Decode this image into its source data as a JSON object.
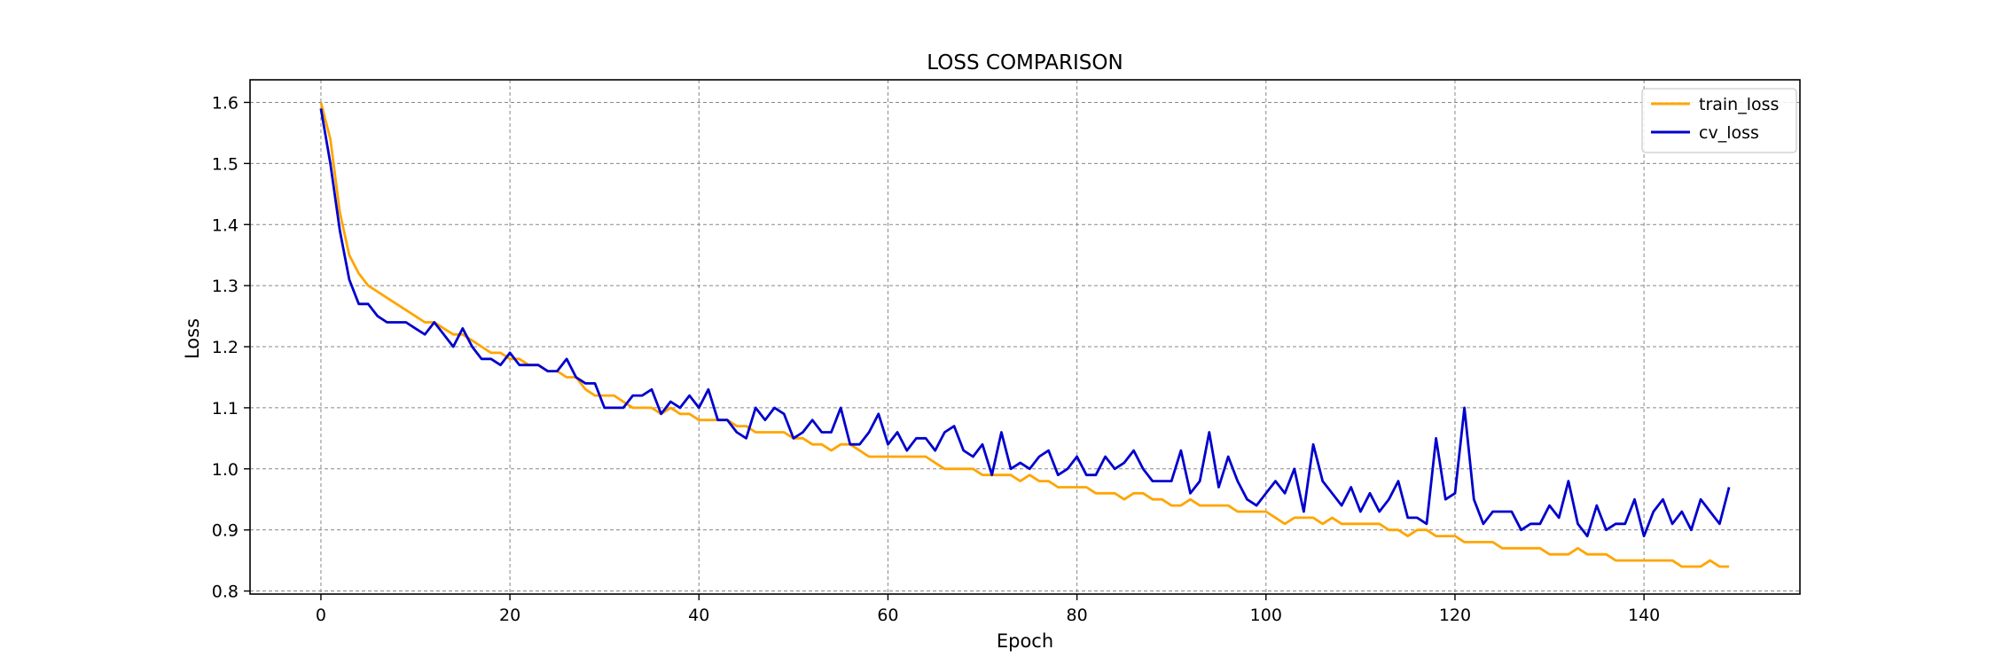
{
  "chart_data": {
    "type": "line",
    "title": "LOSS COMPARISON",
    "xlabel": "Epoch",
    "ylabel": "Loss",
    "xlim": [
      -7.5,
      156.5
    ],
    "ylim": [
      0.795,
      1.637
    ],
    "xticks": [
      0,
      20,
      40,
      60,
      80,
      100,
      120,
      140
    ],
    "yticks": [
      0.8,
      0.9,
      1.0,
      1.1,
      1.2,
      1.3,
      1.4,
      1.5,
      1.6
    ],
    "xtick_labels": [
      "0",
      "20",
      "40",
      "60",
      "80",
      "100",
      "120",
      "140"
    ],
    "ytick_labels": [
      "0.8",
      "0.9",
      "1.0",
      "1.1",
      "1.2",
      "1.3",
      "1.4",
      "1.5",
      "1.6"
    ],
    "grid": true,
    "legend_position": "top-right",
    "series": [
      {
        "name": "train_loss",
        "color": "#FFA500",
        "x": [
          0,
          1,
          2,
          3,
          4,
          5,
          6,
          7,
          8,
          9,
          10,
          11,
          12,
          13,
          14,
          15,
          16,
          17,
          18,
          19,
          20,
          21,
          22,
          23,
          24,
          25,
          26,
          27,
          28,
          29,
          30,
          31,
          32,
          33,
          34,
          35,
          36,
          37,
          38,
          39,
          40,
          41,
          42,
          43,
          44,
          45,
          46,
          47,
          48,
          49,
          50,
          51,
          52,
          53,
          54,
          55,
          56,
          57,
          58,
          59,
          60,
          61,
          62,
          63,
          64,
          65,
          66,
          67,
          68,
          69,
          70,
          71,
          72,
          73,
          74,
          75,
          76,
          77,
          78,
          79,
          80,
          81,
          82,
          83,
          84,
          85,
          86,
          87,
          88,
          89,
          90,
          91,
          92,
          93,
          94,
          95,
          96,
          97,
          98,
          99,
          100,
          101,
          102,
          103,
          104,
          105,
          106,
          107,
          108,
          109,
          110,
          111,
          112,
          113,
          114,
          115,
          116,
          117,
          118,
          119,
          120,
          121,
          122,
          123,
          124,
          125,
          126,
          127,
          128,
          129,
          130,
          131,
          132,
          133,
          134,
          135,
          136,
          137,
          138,
          139,
          140,
          141,
          142,
          143,
          144,
          145,
          146,
          147,
          148,
          149
        ],
        "values": [
          1.6,
          1.54,
          1.42,
          1.35,
          1.32,
          1.3,
          1.29,
          1.28,
          1.27,
          1.26,
          1.25,
          1.24,
          1.24,
          1.23,
          1.22,
          1.22,
          1.21,
          1.2,
          1.19,
          1.19,
          1.18,
          1.18,
          1.17,
          1.17,
          1.16,
          1.16,
          1.15,
          1.15,
          1.13,
          1.12,
          1.12,
          1.12,
          1.11,
          1.1,
          1.1,
          1.1,
          1.09,
          1.1,
          1.09,
          1.09,
          1.08,
          1.08,
          1.08,
          1.08,
          1.07,
          1.07,
          1.06,
          1.06,
          1.06,
          1.06,
          1.05,
          1.05,
          1.04,
          1.04,
          1.03,
          1.04,
          1.04,
          1.03,
          1.02,
          1.02,
          1.02,
          1.02,
          1.02,
          1.02,
          1.02,
          1.01,
          1.0,
          1.0,
          1.0,
          1.0,
          0.99,
          0.99,
          0.99,
          0.99,
          0.98,
          0.99,
          0.98,
          0.98,
          0.97,
          0.97,
          0.97,
          0.97,
          0.96,
          0.96,
          0.96,
          0.95,
          0.96,
          0.96,
          0.95,
          0.95,
          0.94,
          0.94,
          0.95,
          0.94,
          0.94,
          0.94,
          0.94,
          0.93,
          0.93,
          0.93,
          0.93,
          0.92,
          0.91,
          0.92,
          0.92,
          0.92,
          0.91,
          0.92,
          0.91,
          0.91,
          0.91,
          0.91,
          0.91,
          0.9,
          0.9,
          0.89,
          0.9,
          0.9,
          0.89,
          0.89,
          0.89,
          0.88,
          0.88,
          0.88,
          0.88,
          0.87,
          0.87,
          0.87,
          0.87,
          0.87,
          0.86,
          0.86,
          0.86,
          0.87,
          0.86,
          0.86,
          0.86,
          0.85,
          0.85,
          0.85,
          0.85,
          0.85,
          0.85,
          0.85,
          0.84,
          0.84,
          0.84,
          0.85,
          0.84,
          0.84
        ]
      },
      {
        "name": "cv_loss",
        "color": "#0000CD",
        "x": [
          0,
          1,
          2,
          3,
          4,
          5,
          6,
          7,
          8,
          9,
          10,
          11,
          12,
          13,
          14,
          15,
          16,
          17,
          18,
          19,
          20,
          21,
          22,
          23,
          24,
          25,
          26,
          27,
          28,
          29,
          30,
          31,
          32,
          33,
          34,
          35,
          36,
          37,
          38,
          39,
          40,
          41,
          42,
          43,
          44,
          45,
          46,
          47,
          48,
          49,
          50,
          51,
          52,
          53,
          54,
          55,
          56,
          57,
          58,
          59,
          60,
          61,
          62,
          63,
          64,
          65,
          66,
          67,
          68,
          69,
          70,
          71,
          72,
          73,
          74,
          75,
          76,
          77,
          78,
          79,
          80,
          81,
          82,
          83,
          84,
          85,
          86,
          87,
          88,
          89,
          90,
          91,
          92,
          93,
          94,
          95,
          96,
          97,
          98,
          99,
          100,
          101,
          102,
          103,
          104,
          105,
          106,
          107,
          108,
          109,
          110,
          111,
          112,
          113,
          114,
          115,
          116,
          117,
          118,
          119,
          120,
          121,
          122,
          123,
          124,
          125,
          126,
          127,
          128,
          129,
          130,
          131,
          132,
          133,
          134,
          135,
          136,
          137,
          138,
          139,
          140,
          141,
          142,
          143,
          144,
          145,
          146,
          147,
          148,
          149
        ],
        "values": [
          1.59,
          1.5,
          1.39,
          1.31,
          1.27,
          1.27,
          1.25,
          1.24,
          1.24,
          1.24,
          1.23,
          1.22,
          1.24,
          1.22,
          1.2,
          1.23,
          1.2,
          1.18,
          1.18,
          1.17,
          1.19,
          1.17,
          1.17,
          1.17,
          1.16,
          1.16,
          1.18,
          1.15,
          1.14,
          1.14,
          1.1,
          1.1,
          1.1,
          1.12,
          1.12,
          1.13,
          1.09,
          1.11,
          1.1,
          1.12,
          1.1,
          1.13,
          1.08,
          1.08,
          1.06,
          1.05,
          1.1,
          1.08,
          1.1,
          1.09,
          1.05,
          1.06,
          1.08,
          1.06,
          1.06,
          1.1,
          1.04,
          1.04,
          1.06,
          1.09,
          1.04,
          1.06,
          1.03,
          1.05,
          1.05,
          1.03,
          1.06,
          1.07,
          1.03,
          1.02,
          1.04,
          0.99,
          1.06,
          1.0,
          1.01,
          1.0,
          1.02,
          1.03,
          0.99,
          1.0,
          1.02,
          0.99,
          0.99,
          1.02,
          1.0,
          1.01,
          1.03,
          1.0,
          0.98,
          0.98,
          0.98,
          1.03,
          0.96,
          0.98,
          1.06,
          0.97,
          1.02,
          0.98,
          0.95,
          0.94,
          0.96,
          0.98,
          0.96,
          1.0,
          0.93,
          1.04,
          0.98,
          0.96,
          0.94,
          0.97,
          0.93,
          0.96,
          0.93,
          0.95,
          0.98,
          0.92,
          0.92,
          0.91,
          1.05,
          0.95,
          0.96,
          1.1,
          0.95,
          0.91,
          0.93,
          0.93,
          0.93,
          0.9,
          0.91,
          0.91,
          0.94,
          0.92,
          0.98,
          0.91,
          0.89,
          0.94,
          0.9,
          0.91,
          0.91,
          0.95,
          0.89,
          0.93,
          0.95,
          0.91,
          0.93,
          0.9,
          0.95,
          0.93,
          0.91,
          0.97
        ]
      }
    ]
  }
}
